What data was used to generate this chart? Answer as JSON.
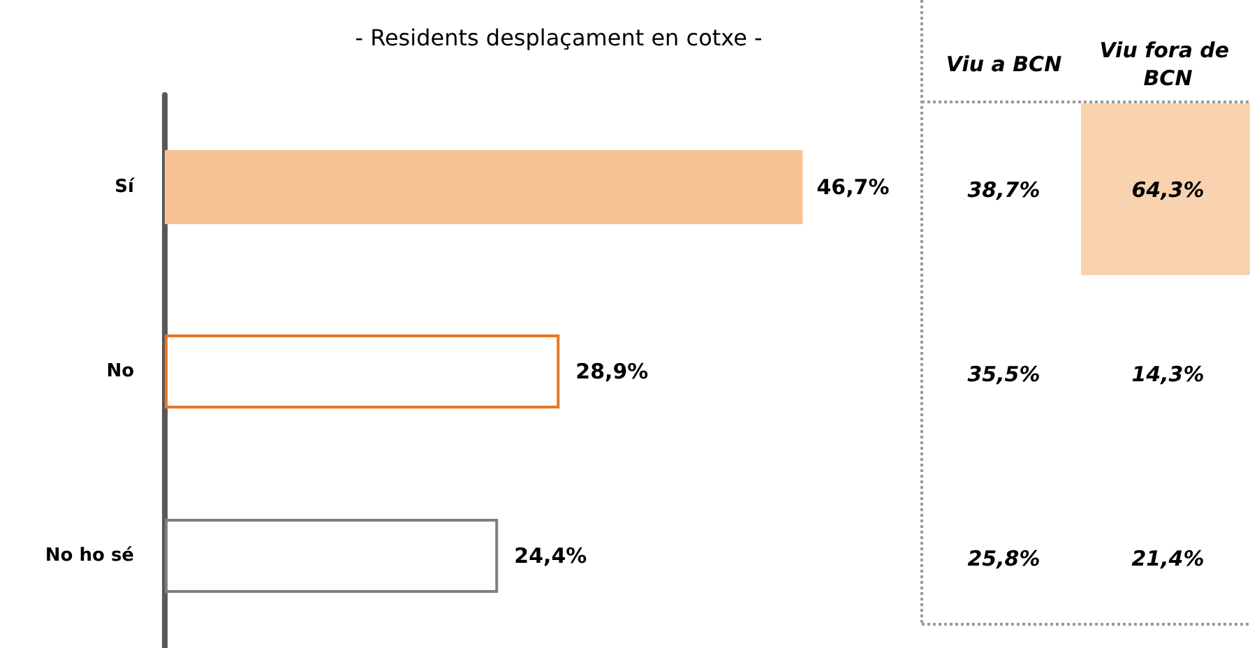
{
  "chart_data": [
    {
      "type": "bar",
      "orientation": "horizontal",
      "subtitle": "- Residents desplaçament en cotxe -",
      "categories": [
        "Sí",
        "No",
        "No ho sé"
      ],
      "values": [
        46.7,
        28.9,
        24.4
      ],
      "colors": [
        "#f8c394",
        "#e87722",
        "#7f7f7f"
      ],
      "value_labels": [
        "46,7%",
        "28,9%",
        "24,4%"
      ],
      "tick_labels": "y"
    },
    {
      "type": "other",
      "categories": [
        "Viu a BCN",
        "Viu fora de BCN"
      ],
      "annotations": [
        "38,7%",
        "64,3%",
        "35,5%",
        "14,3%",
        "25,8%",
        "21,4%"
      ]
    }
  ]
}
